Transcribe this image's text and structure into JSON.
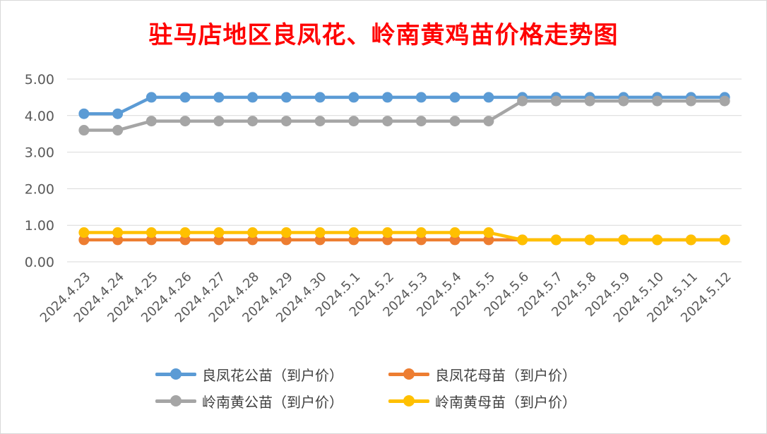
{
  "chart_data": {
    "type": "line",
    "title": "驻马店地区良凤花、岭南黄鸡苗价格走势图",
    "xlabel": "",
    "ylabel": "",
    "ylim": [
      0,
      5
    ],
    "yticks": [
      "0.00",
      "1.00",
      "2.00",
      "3.00",
      "4.00",
      "5.00"
    ],
    "grid": true,
    "legend_position": "bottom",
    "categories": [
      "2024.4.23",
      "2024.4.24",
      "2024.4.25",
      "2024.4.26",
      "2024.4.27",
      "2024.4.28",
      "2024.4.29",
      "2024.4.30",
      "2024.5.1",
      "2024.5.2",
      "2024.5.3",
      "2024.5.4",
      "2024.5.5",
      "2024.5.6",
      "2024.5.7",
      "2024.5.8",
      "2024.5.9",
      "2024.5.10",
      "2024.5.11",
      "2024.5.12"
    ],
    "series": [
      {
        "name": "良凤花公苗（到户价）",
        "color": "#5b9bd5",
        "values": [
          4.05,
          4.05,
          4.5,
          4.5,
          4.5,
          4.5,
          4.5,
          4.5,
          4.5,
          4.5,
          4.5,
          4.5,
          4.5,
          4.5,
          4.5,
          4.5,
          4.5,
          4.5,
          4.5,
          4.5
        ]
      },
      {
        "name": "良凤花母苗（到户价）",
        "color": "#ed7d31",
        "values": [
          0.6,
          0.6,
          0.6,
          0.6,
          0.6,
          0.6,
          0.6,
          0.6,
          0.6,
          0.6,
          0.6,
          0.6,
          0.6,
          0.6,
          0.6,
          0.6,
          0.6,
          0.6,
          0.6,
          0.6
        ]
      },
      {
        "name": "岭南黄公苗（到户价）",
        "color": "#a5a5a5",
        "values": [
          3.6,
          3.6,
          3.85,
          3.85,
          3.85,
          3.85,
          3.85,
          3.85,
          3.85,
          3.85,
          3.85,
          3.85,
          3.85,
          4.4,
          4.4,
          4.4,
          4.4,
          4.4,
          4.4,
          4.4
        ]
      },
      {
        "name": "岭南黄母苗（到户价）",
        "color": "#ffc000",
        "values": [
          0.8,
          0.8,
          0.8,
          0.8,
          0.8,
          0.8,
          0.8,
          0.8,
          0.8,
          0.8,
          0.8,
          0.8,
          0.8,
          0.6,
          0.6,
          0.6,
          0.6,
          0.6,
          0.6,
          0.6
        ]
      }
    ]
  }
}
